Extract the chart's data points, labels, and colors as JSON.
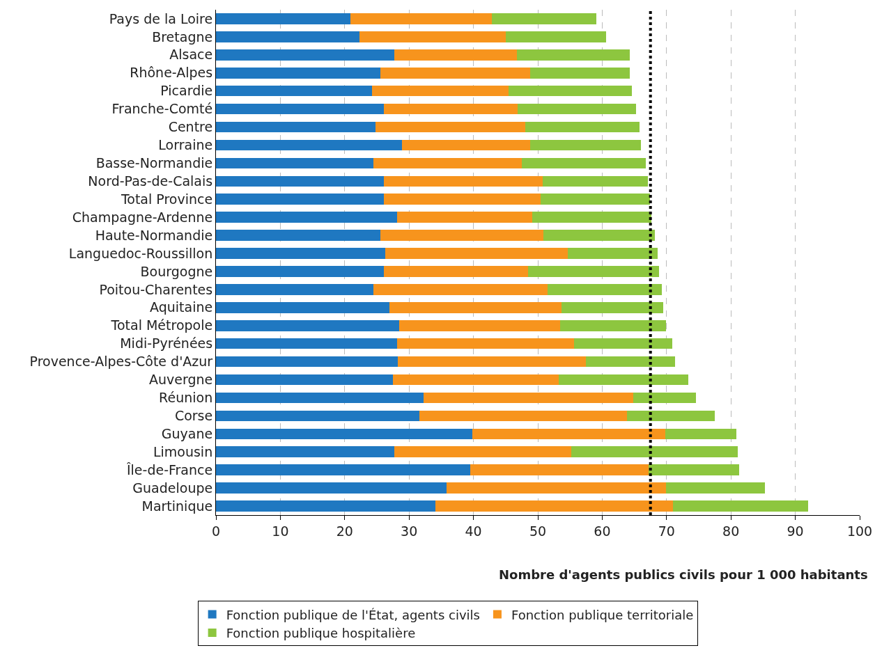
{
  "chart_data": {
    "type": "bar",
    "orientation": "horizontal",
    "stacked": true,
    "xlabel": "Nombre d'agents publics civils pour 1 000 habitants",
    "categories": [
      "Pays de la Loire",
      "Bretagne",
      "Alsace",
      "Rhône-Alpes",
      "Picardie",
      "Franche-Comté",
      "Centre",
      "Lorraine",
      "Basse-Normandie",
      "Nord-Pas-de-Calais",
      "Total Province",
      "Champagne-Ardenne",
      "Haute-Normandie",
      "Languedoc-Roussillon",
      "Bourgogne",
      "Poitou-Charentes",
      "Aquitaine",
      "Total Métropole",
      "Midi-Pyrénées",
      "Provence-Alpes-Côte d'Azur",
      "Auvergne",
      "Réunion",
      "Corse",
      "Guyane",
      "Limousin",
      "Île-de-France",
      "Guadeloupe",
      "Martinique"
    ],
    "series": [
      {
        "name": "Fonction publique de l'État, agents civils",
        "color": "#1f78c1",
        "values": [
          20.9,
          22.3,
          27.7,
          25.5,
          24.2,
          26.1,
          24.8,
          28.9,
          24.5,
          26.1,
          26.1,
          28.1,
          25.5,
          26.3,
          26.1,
          24.5,
          26.9,
          28.5,
          28.1,
          28.3,
          27.5,
          32.3,
          31.6,
          39.8,
          27.7,
          39.5,
          35.8,
          34.1
        ]
      },
      {
        "name": "Fonction publique territoriale",
        "color": "#f7941d",
        "values": [
          22.0,
          22.7,
          19.1,
          23.3,
          21.3,
          20.8,
          23.2,
          19.9,
          23.0,
          24.7,
          24.3,
          21.0,
          25.4,
          28.3,
          22.4,
          27.0,
          26.8,
          25.0,
          27.5,
          29.2,
          25.8,
          32.5,
          32.2,
          30.0,
          27.5,
          27.7,
          34.1,
          36.9
        ]
      },
      {
        "name": "Fonction publique hospitalière",
        "color": "#8dc63f",
        "values": [
          16.2,
          15.6,
          17.5,
          15.5,
          19.1,
          18.4,
          17.8,
          17.2,
          19.3,
          16.3,
          17.0,
          18.5,
          17.3,
          14.0,
          20.3,
          17.8,
          15.8,
          16.4,
          15.3,
          13.8,
          20.1,
          9.8,
          13.7,
          11.0,
          25.9,
          14.1,
          15.4,
          21.0
        ]
      }
    ],
    "xlim": [
      0,
      100
    ],
    "xticks": [
      0,
      10,
      20,
      30,
      40,
      50,
      60,
      70,
      80,
      90,
      100
    ],
    "grid": "x",
    "legend": "bottom",
    "ref_lines": [
      {
        "axis": "x",
        "value": 67.5,
        "color": "#000000",
        "line_style": "dotted"
      }
    ]
  }
}
